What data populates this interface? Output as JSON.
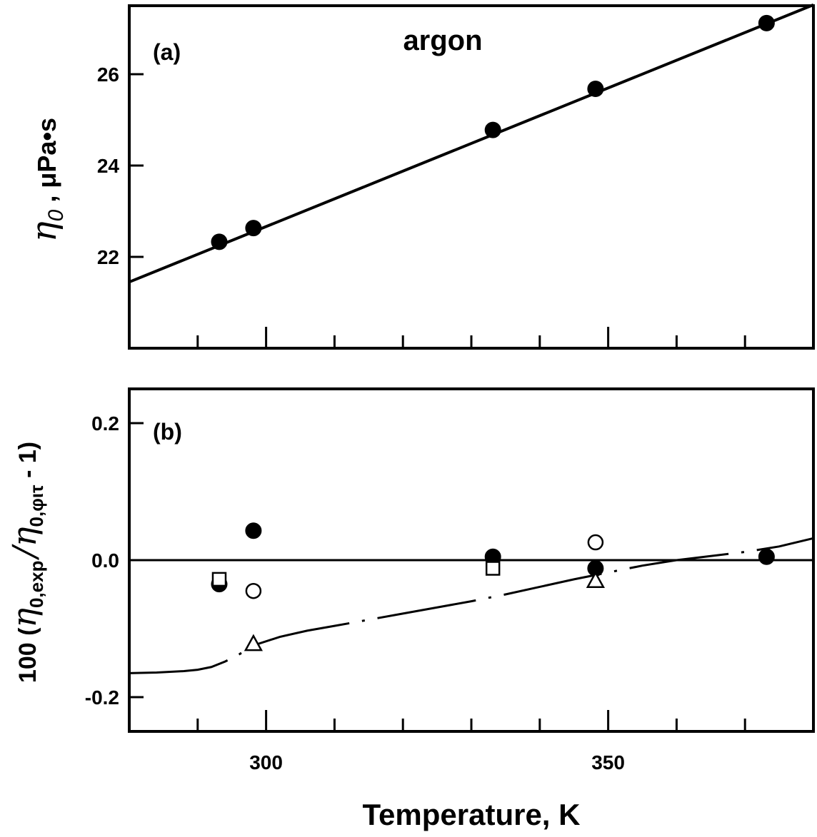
{
  "chart_data": [
    {
      "type": "line",
      "panel_label": "(a)",
      "title": "argon",
      "ylabel_symbol": "η",
      "ylabel_sub": "0",
      "ylabel_unit": " ,  μPa•s",
      "xlim": [
        280,
        380
      ],
      "ylim": [
        20,
        27.5
      ],
      "yticks": [
        {
          "value": 22,
          "label": "22"
        },
        {
          "value": 24,
          "label": "24"
        },
        {
          "value": 26,
          "label": "26"
        }
      ],
      "xticks_minor": [
        290,
        300,
        310,
        320,
        330,
        340,
        350,
        360,
        370
      ],
      "xticks_major": [
        300,
        350
      ],
      "series": [
        {
          "kind": "markers",
          "marker": "filled-circle",
          "x": [
            293.15,
            298.15,
            333.15,
            348.15,
            373.15
          ],
          "y": [
            22.33,
            22.63,
            24.78,
            25.68,
            27.12
          ]
        },
        {
          "kind": "fit-line",
          "x": [
            280,
            380
          ],
          "y": [
            21.45,
            27.52
          ]
        }
      ]
    },
    {
      "type": "scatter",
      "panel_label": "(b)",
      "xlim": [
        280,
        380
      ],
      "ylim": [
        -0.25,
        0.25
      ],
      "yticks": [
        {
          "value": 0.2,
          "label": "0.2"
        },
        {
          "value": 0.0,
          "label": "0.0"
        },
        {
          "value": -0.2,
          "label": "-0.2"
        }
      ],
      "xticks_minor": [
        290,
        300,
        310,
        320,
        330,
        340,
        350,
        360,
        370
      ],
      "xticks": [
        {
          "value": 300,
          "label": "300"
        },
        {
          "value": 350,
          "label": "350"
        }
      ],
      "xlabel": "Temperature,  K",
      "ylabel_parts": {
        "prefix": "100 (",
        "eta1": "η",
        "sub1": "0,exp",
        "slash": "/",
        "eta2": "η",
        "sub2": "0,φιτ",
        "suffix": " - 1)"
      },
      "zero_line": 0.0,
      "series": [
        {
          "marker": "filled-circle",
          "x": [
            293.15,
            298.15,
            333.15,
            348.15,
            373.15
          ],
          "y": [
            -0.035,
            0.043,
            0.005,
            -0.012,
            0.005
          ]
        },
        {
          "marker": "open-circle",
          "x": [
            298.15,
            348.15
          ],
          "y": [
            -0.045,
            0.026
          ]
        },
        {
          "marker": "open-square",
          "x": [
            293.15,
            333.15
          ],
          "y": [
            -0.028,
            -0.012
          ]
        },
        {
          "marker": "open-triangle",
          "x": [
            298.15,
            348.15
          ],
          "y": [
            -0.122,
            -0.03
          ]
        },
        {
          "kind": "curve",
          "style": "dash-dot",
          "x": [
            280,
            284,
            288,
            290,
            292,
            294,
            296,
            298,
            302,
            306,
            310,
            315,
            320,
            325,
            330,
            335,
            340,
            345,
            350,
            355,
            360,
            365,
            370,
            375,
            380
          ],
          "y": [
            -0.165,
            -0.164,
            -0.162,
            -0.16,
            -0.156,
            -0.148,
            -0.138,
            -0.125,
            -0.112,
            -0.103,
            -0.096,
            -0.087,
            -0.078,
            -0.069,
            -0.06,
            -0.05,
            -0.039,
            -0.028,
            -0.018,
            -0.008,
            0.0,
            0.006,
            0.012,
            0.02,
            0.032
          ]
        }
      ]
    }
  ]
}
